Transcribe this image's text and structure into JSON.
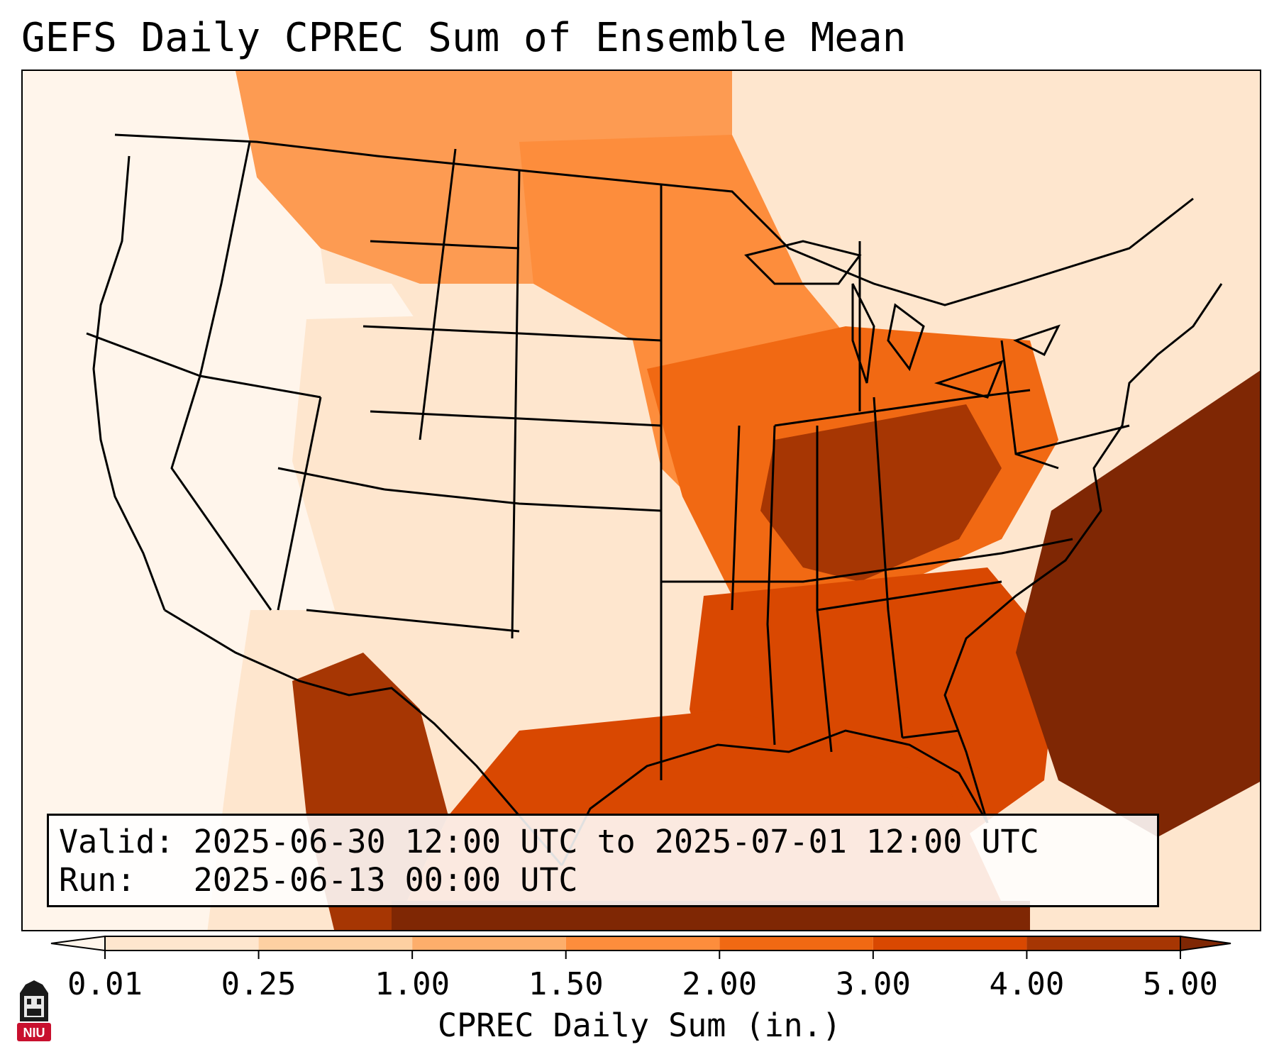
{
  "title": "GEFS Daily CPREC Sum of Ensemble Mean",
  "info": {
    "valid_label": "Valid:",
    "valid_value": "2025-06-30 12:00 UTC to 2025-07-01 12:00 UTC",
    "run_label": "Run:",
    "run_value": "2025-06-13 00:00 UTC"
  },
  "colorbar": {
    "label": "CPREC Daily Sum (in.)",
    "ticks": [
      "0.01",
      "0.25",
      "1.00",
      "1.50",
      "2.00",
      "3.00",
      "4.00",
      "5.00"
    ],
    "colors": [
      "#fff5eb",
      "#fee6ce",
      "#fdd0a2",
      "#fdae6b",
      "#fd8d3c",
      "#f16913",
      "#d94801",
      "#a63603",
      "#7f2704"
    ],
    "extend": "both"
  },
  "logo": {
    "text": "NIU",
    "color": "#c8102e"
  },
  "map": {
    "region": "Contiguous United States",
    "field_colors": {
      "west": "#fff5eb",
      "plains": "#fee6ce",
      "northern_plains": "#fd8d3c",
      "midwest": "#f16913",
      "ohio_valley": "#a63603",
      "southeast": "#d94801",
      "gulf": "#d94801",
      "atlantic": "#7f2704",
      "mexico": "#a63603"
    }
  }
}
